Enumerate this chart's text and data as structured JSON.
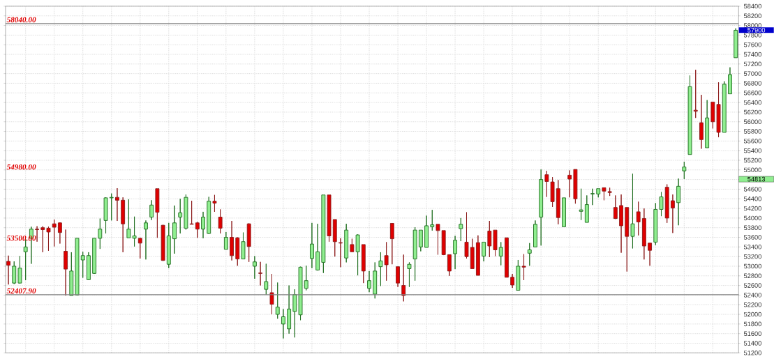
{
  "chart_data": {
    "type": "candlestick",
    "categories": [
      null,
      null,
      null,
      null,
      null,
      null,
      null,
      null,
      null,
      null,
      null,
      null,
      null,
      null,
      null,
      null,
      null,
      null,
      null,
      null,
      null,
      null,
      null,
      null,
      null,
      null,
      null,
      null,
      null,
      null,
      null,
      null,
      null,
      null,
      null,
      null,
      null,
      null,
      null,
      null,
      null,
      null,
      null,
      null,
      null,
      null,
      null,
      null,
      null,
      null,
      null,
      null,
      null,
      null,
      null,
      null,
      null,
      null,
      null,
      null,
      null,
      null,
      null,
      null,
      null,
      null,
      null,
      null,
      null,
      null,
      null,
      null,
      null,
      null,
      null,
      null,
      null,
      null,
      null,
      null,
      null,
      null,
      null,
      null,
      null,
      null,
      null,
      null,
      null,
      null,
      null,
      null,
      null,
      null,
      null,
      null,
      null,
      null,
      null,
      null,
      null,
      null,
      null,
      null,
      null,
      null,
      null,
      null,
      null,
      null,
      null,
      null,
      null,
      null,
      null,
      null,
      null,
      null,
      null,
      null,
      null,
      null,
      null,
      null,
      null,
      null,
      null,
      null
    ],
    "ohlc": [
      [
        53100,
        53220,
        52620,
        53020
      ],
      [
        52650,
        53100,
        52630,
        53000
      ],
      [
        52650,
        53210,
        52640,
        52960
      ],
      [
        53300,
        53560,
        52710,
        53400
      ],
      [
        53580,
        53820,
        53050,
        53770
      ],
      [
        53770,
        53830,
        53510,
        53760
      ],
      [
        53800,
        53830,
        53290,
        53760
      ],
      [
        53790,
        53820,
        53320,
        53710
      ],
      [
        53880,
        53970,
        53410,
        53810
      ],
      [
        53900,
        53910,
        53470,
        53700
      ],
      [
        53310,
        53760,
        52390,
        52940
      ],
      [
        52390,
        53290,
        52390,
        52900
      ],
      [
        52400,
        53580,
        52390,
        53580
      ],
      [
        53130,
        53300,
        52760,
        53220
      ],
      [
        52720,
        53290,
        52710,
        53220
      ],
      [
        52850,
        53580,
        52840,
        53580
      ],
      [
        53580,
        53990,
        53360,
        53770
      ],
      [
        53950,
        54430,
        53680,
        54420
      ],
      [
        54420,
        54510,
        53950,
        54430
      ],
      [
        54430,
        54620,
        53940,
        54370
      ],
      [
        54370,
        54430,
        53290,
        53880
      ],
      [
        53590,
        54390,
        53590,
        53770
      ],
      [
        53580,
        54030,
        53410,
        53630
      ],
      [
        53580,
        53590,
        53160,
        53480
      ],
      [
        53770,
        53950,
        53140,
        53900
      ],
      [
        54020,
        54370,
        53960,
        54270
      ],
      [
        54610,
        54610,
        53590,
        54120
      ],
      [
        53850,
        53860,
        53110,
        53120
      ],
      [
        53040,
        53900,
        52960,
        53630
      ],
      [
        53570,
        54260,
        53260,
        53900
      ],
      [
        54020,
        54400,
        53680,
        54110
      ],
      [
        53790,
        54490,
        53760,
        54430
      ],
      [
        53880,
        54360,
        53870,
        53870
      ],
      [
        53900,
        53920,
        53590,
        53770
      ],
      [
        53770,
        54130,
        53580,
        54020
      ],
      [
        53680,
        54440,
        53670,
        54350
      ],
      [
        54350,
        54480,
        54130,
        54310
      ],
      [
        54020,
        54180,
        53680,
        53790
      ],
      [
        53350,
        53710,
        53350,
        53600
      ],
      [
        53600,
        53940,
        53120,
        53220
      ],
      [
        53590,
        53600,
        53010,
        53150
      ],
      [
        53150,
        53700,
        53150,
        53510
      ],
      [
        53880,
        53890,
        53090,
        53410
      ],
      [
        53000,
        53210,
        52740,
        53090
      ],
      [
        52860,
        53090,
        52600,
        52850
      ],
      [
        52520,
        53050,
        52410,
        52680
      ],
      [
        52450,
        52840,
        52000,
        52210
      ],
      [
        52000,
        52660,
        51910,
        52150
      ],
      [
        51800,
        52110,
        51500,
        51950
      ],
      [
        51700,
        52600,
        51600,
        52110
      ],
      [
        52060,
        52520,
        51520,
        52410
      ],
      [
        51990,
        52990,
        51880,
        52980
      ],
      [
        52540,
        53010,
        52500,
        52700
      ],
      [
        53160,
        53900,
        52960,
        53460
      ],
      [
        52920,
        53880,
        52910,
        53300
      ],
      [
        53080,
        54480,
        52860,
        54480
      ],
      [
        54480,
        54480,
        53510,
        53630
      ],
      [
        53970,
        53970,
        53200,
        53510
      ],
      [
        53490,
        53580,
        52980,
        53480
      ],
      [
        53170,
        53880,
        53080,
        53750
      ],
      [
        53450,
        53570,
        53300,
        53300
      ],
      [
        53300,
        53660,
        52810,
        53650
      ],
      [
        53450,
        53450,
        52650,
        52900
      ],
      [
        52540,
        52900,
        52460,
        52700
      ],
      [
        52420,
        53080,
        52330,
        52900
      ],
      [
        52990,
        53290,
        52590,
        53110
      ],
      [
        53220,
        53500,
        52700,
        53030
      ],
      [
        53890,
        53890,
        53040,
        53570
      ],
      [
        52990,
        52990,
        52570,
        52650
      ],
      [
        52600,
        53240,
        52270,
        52390
      ],
      [
        52950,
        53080,
        52570,
        53040
      ],
      [
        53150,
        53810,
        52700,
        53750
      ],
      [
        53400,
        53750,
        53310,
        53750
      ],
      [
        53390,
        54050,
        53390,
        53840
      ],
      [
        53820,
        54170,
        53740,
        53860
      ],
      [
        53870,
        53870,
        53240,
        53740
      ],
      [
        53740,
        53740,
        53230,
        53240
      ],
      [
        53240,
        53240,
        52800,
        52900
      ],
      [
        53260,
        53630,
        52940,
        53540
      ],
      [
        53780,
        54000,
        53520,
        53870
      ],
      [
        53500,
        54120,
        53160,
        53200
      ],
      [
        53390,
        53570,
        52950,
        52950
      ],
      [
        53490,
        53640,
        52810,
        52810
      ],
      [
        53210,
        53500,
        53100,
        53500
      ],
      [
        53730,
        53940,
        53190,
        53420
      ],
      [
        53750,
        53750,
        53210,
        53340
      ],
      [
        53210,
        53500,
        53020,
        53390
      ],
      [
        53590,
        53590,
        52770,
        52770
      ],
      [
        52770,
        52840,
        52550,
        52610
      ],
      [
        52500,
        53130,
        52500,
        53000
      ],
      [
        53000,
        53250,
        52710,
        52980
      ],
      [
        53270,
        53480,
        53010,
        53340
      ],
      [
        53400,
        53950,
        53400,
        53870
      ],
      [
        54020,
        55010,
        53430,
        54800
      ],
      [
        54900,
        54980,
        54440,
        54760
      ],
      [
        54750,
        54850,
        54230,
        54340
      ],
      [
        54610,
        54790,
        53870,
        54010
      ],
      [
        53820,
        54420,
        53820,
        54420
      ],
      [
        54890,
        54990,
        54430,
        54810
      ],
      [
        55010,
        55010,
        54300,
        54400
      ],
      [
        54140,
        54610,
        53960,
        54170
      ],
      [
        53910,
        54470,
        53910,
        54280
      ],
      [
        54500,
        54610,
        54270,
        54510
      ],
      [
        54500,
        54610,
        54430,
        54610
      ],
      [
        54630,
        54630,
        54370,
        54560
      ],
      [
        54550,
        54630,
        54460,
        54530
      ],
      [
        54220,
        54470,
        53980,
        53990
      ],
      [
        54260,
        54490,
        53280,
        53840
      ],
      [
        54220,
        54220,
        52890,
        53620
      ],
      [
        53620,
        54920,
        53370,
        53880
      ],
      [
        54130,
        54340,
        53640,
        53920
      ],
      [
        53990,
        54200,
        53140,
        53420
      ],
      [
        53480,
        53480,
        53010,
        53330
      ],
      [
        53500,
        54310,
        53440,
        54180
      ],
      [
        54180,
        54540,
        54040,
        54440
      ],
      [
        54640,
        54700,
        53900,
        54000
      ],
      [
        54360,
        54490,
        53690,
        54210
      ],
      [
        54320,
        54820,
        53850,
        54660
      ],
      [
        54980,
        55170,
        54810,
        55060
      ],
      [
        55320,
        56960,
        55320,
        56730
      ],
      [
        56240,
        57080,
        56080,
        56220
      ],
      [
        55980,
        56560,
        55440,
        55630
      ],
      [
        55460,
        56450,
        55460,
        56080
      ],
      [
        56410,
        56410,
        55860,
        56000
      ],
      [
        56360,
        56820,
        55680,
        55780
      ],
      [
        55780,
        56840,
        55780,
        56780
      ],
      [
        56580,
        57130,
        56580,
        56980
      ],
      [
        57330,
        57940,
        57330,
        57900
      ]
    ],
    "ylim": [
      51200,
      58400
    ],
    "yticks": [
      51200,
      51400,
      51600,
      51800,
      52000,
      52200,
      52400,
      52600,
      52800,
      53000,
      53200,
      53400,
      53600,
      53800,
      54000,
      54200,
      54400,
      54600,
      {
        "value": 54800,
        "label": null
      },
      55000,
      55200,
      55400,
      55600,
      55800,
      56000,
      56200,
      56400,
      56600,
      56800,
      57000,
      57200,
      57400,
      57600,
      57800,
      58000,
      58200,
      58400
    ],
    "grid": true,
    "ref_lines": [
      {
        "axis": "y",
        "value": 58040,
        "label": "58040.00",
        "color": "#808080"
      },
      {
        "axis": "y",
        "value": 52407.9,
        "label": "52407.90",
        "color": "#808080"
      }
    ],
    "annotations": [
      "54980.00",
      "53500.00",
      "57900",
      "54813"
    ]
  }
}
